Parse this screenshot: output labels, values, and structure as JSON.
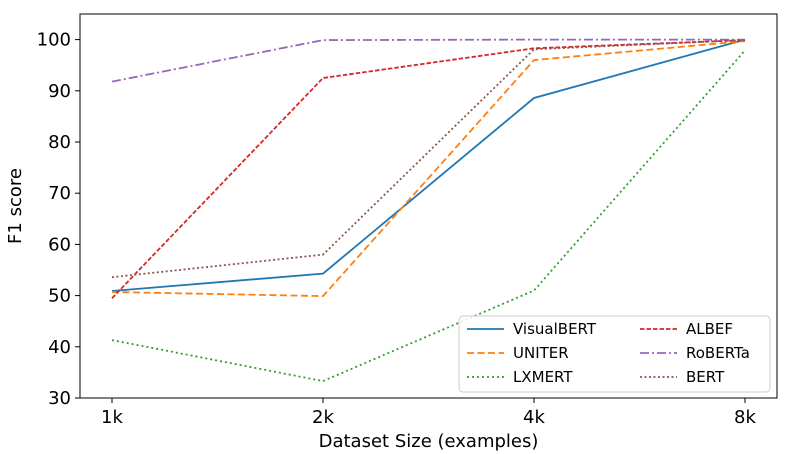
{
  "chart_data": {
    "type": "line",
    "xlabel": "Dataset Size (examples)",
    "ylabel": "F1 score",
    "categories": [
      "1k",
      "2k",
      "4k",
      "8k"
    ],
    "ylim": [
      30,
      105
    ],
    "yticks": [
      30,
      40,
      50,
      60,
      70,
      80,
      90,
      100
    ],
    "grid": false,
    "legend": {
      "placement": "bottom-right",
      "columns": 2
    },
    "series": [
      {
        "name": "VisualBERT",
        "color": "#1f77b4",
        "dash": "solid",
        "values": [
          50.9,
          54.3,
          88.6,
          100.0
        ]
      },
      {
        "name": "UNITER",
        "color": "#ff7f0e",
        "dash": "dashed",
        "values": [
          50.7,
          49.9,
          96.0,
          99.7
        ]
      },
      {
        "name": "LXMERT",
        "color": "#2ca02c",
        "dash": "dotted",
        "values": [
          41.3,
          33.3,
          51.0,
          97.9
        ]
      },
      {
        "name": "ALBEF",
        "color": "#d62728",
        "dash": "densedash",
        "values": [
          49.5,
          92.5,
          98.3,
          99.9
        ]
      },
      {
        "name": "RoBERTa",
        "color": "#9467bd",
        "dash": "dashdot",
        "values": [
          91.8,
          99.9,
          100.0,
          100.0
        ]
      },
      {
        "name": "BERT",
        "color": "#8c564b",
        "dash": "densedot",
        "values": [
          53.6,
          58.0,
          98.1,
          99.9
        ]
      }
    ]
  }
}
